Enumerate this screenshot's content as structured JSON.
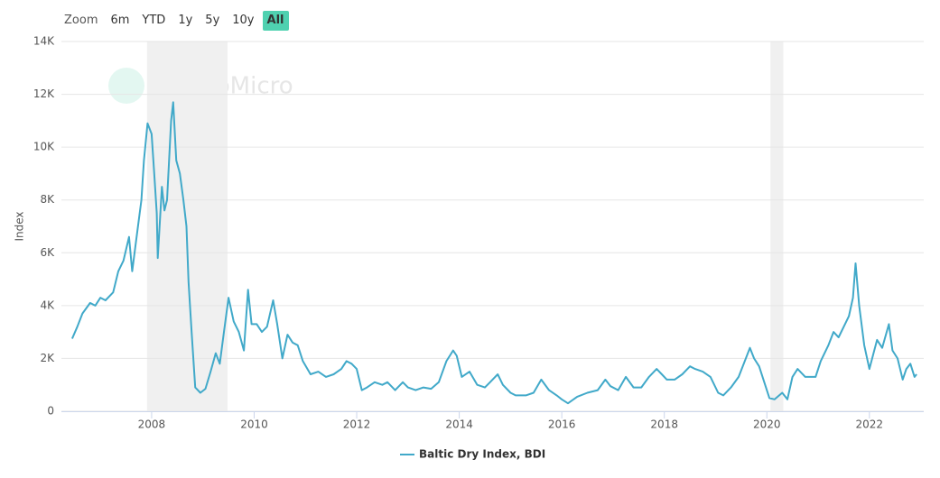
{
  "range_selector": {
    "label": "Zoom",
    "buttons": [
      "6m",
      "YTD",
      "1y",
      "5y",
      "10y",
      "All"
    ],
    "selected": 5
  },
  "watermark": "MacroMicro",
  "chart_data": {
    "type": "line",
    "y_label": "Index",
    "grid": true,
    "legend": "bottom",
    "xlim": [
      2006.24,
      2023.06
    ],
    "xticks": [
      2008,
      2010,
      2012,
      2014,
      2016,
      2018,
      2020,
      2022
    ],
    "ylim": [
      0,
      14000
    ],
    "yticks": [
      0,
      {
        "value": 2000,
        "label": "2K"
      },
      {
        "value": 4000,
        "label": "4K"
      },
      {
        "value": 6000,
        "label": "6K"
      },
      {
        "value": 8000,
        "label": "8K"
      },
      {
        "value": 10000,
        "label": "10K"
      },
      {
        "value": 12000,
        "label": "12K"
      },
      {
        "value": 14000,
        "label": "14K"
      }
    ],
    "bands": [
      [
        2007.91,
        2009.48
      ],
      [
        2020.07,
        2020.32
      ]
    ],
    "x": [
      2006.45,
      2006.55,
      2006.65,
      2006.8,
      2006.9,
      2007.0,
      2007.1,
      2007.25,
      2007.35,
      2007.45,
      2007.56,
      2007.62,
      2007.7,
      2007.8,
      2007.85,
      2007.92,
      2008.0,
      2008.05,
      2008.1,
      2008.12,
      2008.2,
      2008.25,
      2008.3,
      2008.38,
      2008.42,
      2008.48,
      2008.55,
      2008.62,
      2008.68,
      2008.72,
      2008.78,
      2008.85,
      2008.95,
      2009.05,
      2009.15,
      2009.25,
      2009.33,
      2009.41,
      2009.5,
      2009.6,
      2009.7,
      2009.8,
      2009.88,
      2009.95,
      2010.05,
      2010.15,
      2010.25,
      2010.37,
      2010.45,
      2010.55,
      2010.65,
      2010.75,
      2010.85,
      2010.95,
      2011.1,
      2011.25,
      2011.4,
      2011.55,
      2011.7,
      2011.8,
      2011.9,
      2012.0,
      2012.1,
      2012.2,
      2012.35,
      2012.5,
      2012.6,
      2012.75,
      2012.9,
      2013.0,
      2013.15,
      2013.3,
      2013.45,
      2013.6,
      2013.75,
      2013.88,
      2013.95,
      2014.05,
      2014.2,
      2014.35,
      2014.5,
      2014.6,
      2014.75,
      2014.85,
      2015.0,
      2015.1,
      2015.3,
      2015.45,
      2015.6,
      2015.75,
      2015.9,
      2016.0,
      2016.12,
      2016.3,
      2016.5,
      2016.7,
      2016.85,
      2016.95,
      2017.1,
      2017.25,
      2017.4,
      2017.55,
      2017.7,
      2017.85,
      2017.95,
      2018.05,
      2018.2,
      2018.35,
      2018.5,
      2018.6,
      2018.75,
      2018.9,
      2019.05,
      2019.15,
      2019.3,
      2019.45,
      2019.55,
      2019.67,
      2019.75,
      2019.85,
      2019.95,
      2020.05,
      2020.15,
      2020.3,
      2020.4,
      2020.5,
      2020.6,
      2020.75,
      2020.85,
      2020.95,
      2021.05,
      2021.2,
      2021.3,
      2021.4,
      2021.5,
      2021.6,
      2021.68,
      2021.73,
      2021.8,
      2021.9,
      2022.0,
      2022.08,
      2022.15,
      2022.25,
      2022.38,
      2022.45,
      2022.55,
      2022.65,
      2022.72,
      2022.8,
      2022.88,
      2022.92
    ],
    "series": [
      {
        "name": "Baltic Dry Index, BDI",
        "color": "#41a9c9",
        "values": [
          2750,
          3200,
          3700,
          4100,
          4000,
          4300,
          4200,
          4500,
          5300,
          5700,
          6600,
          5300,
          6500,
          8000,
          9500,
          10900,
          10500,
          9000,
          7500,
          5800,
          8500,
          7600,
          8000,
          11000,
          11700,
          9500,
          9000,
          8000,
          7000,
          4900,
          3000,
          900,
          700,
          850,
          1500,
          2200,
          1800,
          3000,
          4300,
          3400,
          3000,
          2300,
          4600,
          3300,
          3300,
          3000,
          3200,
          4200,
          3300,
          2000,
          2900,
          2600,
          2500,
          1900,
          1400,
          1500,
          1300,
          1400,
          1600,
          1900,
          1800,
          1600,
          800,
          900,
          1100,
          1000,
          1100,
          800,
          1100,
          900,
          800,
          900,
          850,
          1100,
          1900,
          2300,
          2100,
          1300,
          1500,
          1000,
          900,
          1100,
          1400,
          1000,
          700,
          600,
          600,
          700,
          1200,
          800,
          600,
          450,
          300,
          550,
          700,
          800,
          1200,
          950,
          800,
          1300,
          900,
          900,
          1300,
          1600,
          1400,
          1200,
          1200,
          1400,
          1700,
          1600,
          1500,
          1300,
          700,
          600,
          900,
          1300,
          1800,
          2400,
          2000,
          1700,
          1100,
          500,
          450,
          700,
          450,
          1300,
          1600,
          1300,
          1300,
          1300,
          1900,
          2500,
          3000,
          2800,
          3200,
          3600,
          4300,
          5600,
          4000,
          2500,
          1600,
          2200,
          2700,
          2400,
          3300,
          2300,
          2000,
          1200,
          1600,
          1800,
          1300,
          1400
        ]
      }
    ]
  }
}
